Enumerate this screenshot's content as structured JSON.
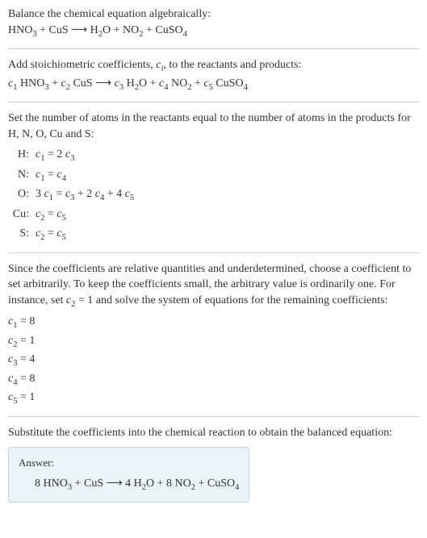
{
  "intro": {
    "line1": "Balance the chemical equation algebraically:",
    "equation": "HNO<sub>3</sub> + CuS ⟶ H<sub>2</sub>O + NO<sub>2</sub> + CuSO<sub>4</sub>"
  },
  "stoich": {
    "line1_a": "Add stoichiometric coefficients, ",
    "line1_ci": "c<sub>i</sub>",
    "line1_b": ", to the reactants and products:",
    "equation": "<span class=\"italic\">c</span><sub>1</sub> HNO<sub>3</sub> + <span class=\"italic\">c</span><sub>2</sub> CuS ⟶ <span class=\"italic\">c</span><sub>3</sub> H<sub>2</sub>O + <span class=\"italic\">c</span><sub>4</sub> NO<sub>2</sub> + <span class=\"italic\">c</span><sub>5</sub> CuSO<sub>4</sub>"
  },
  "atoms": {
    "intro": "Set the number of atoms in the reactants equal to the number of atoms in the products for H, N, O, Cu and S:",
    "rows": [
      {
        "label": "H:",
        "eq": "<span class=\"italic\">c</span><sub>1</sub> = 2 <span class=\"italic\">c</span><sub>3</sub>"
      },
      {
        "label": "N:",
        "eq": "<span class=\"italic\">c</span><sub>1</sub> = <span class=\"italic\">c</span><sub>4</sub>"
      },
      {
        "label": "O:",
        "eq": "3 <span class=\"italic\">c</span><sub>1</sub> = <span class=\"italic\">c</span><sub>3</sub> + 2 <span class=\"italic\">c</span><sub>4</sub> + 4 <span class=\"italic\">c</span><sub>5</sub>"
      },
      {
        "label": "Cu:",
        "eq": "<span class=\"italic\">c</span><sub>2</sub> = <span class=\"italic\">c</span><sub>5</sub>"
      },
      {
        "label": "S:",
        "eq": "<span class=\"italic\">c</span><sub>2</sub> = <span class=\"italic\">c</span><sub>5</sub>"
      }
    ]
  },
  "solve": {
    "intro_a": "Since the coefficients are relative quantities and underdetermined, choose a coefficient to set arbitrarily. To keep the coefficients small, the arbitrary value is ordinarily one. For instance, set ",
    "intro_c2": "<span class=\"italic\">c</span><sub>2</sub> = 1",
    "intro_b": " and solve the system of equations for the remaining coefficients:",
    "coefs": [
      "<span class=\"italic\">c</span><sub>1</sub> = 8",
      "<span class=\"italic\">c</span><sub>2</sub> = 1",
      "<span class=\"italic\">c</span><sub>3</sub> = 4",
      "<span class=\"italic\">c</span><sub>4</sub> = 8",
      "<span class=\"italic\">c</span><sub>5</sub> = 1"
    ]
  },
  "substitute": {
    "text": "Substitute the coefficients into the chemical reaction to obtain the balanced equation:"
  },
  "answer": {
    "label": "Answer:",
    "equation": "8 HNO<sub>3</sub> + CuS ⟶ 4 H<sub>2</sub>O + 8 NO<sub>2</sub> + CuSO<sub>4</sub>"
  },
  "colors": {
    "text": "#333333",
    "divider": "#d0d0d0",
    "answer_bg": "#e8f4f8",
    "answer_border": "#c0d8e0"
  }
}
